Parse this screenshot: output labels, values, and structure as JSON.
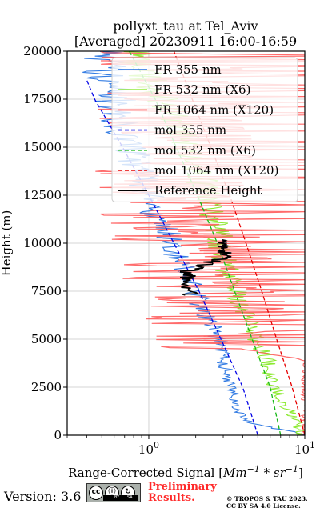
{
  "figure": {
    "title_line1": "pollyxt_tau at Tel_Aviv",
    "title_line2": "[Averaged] 20230911 16:00-16:59",
    "ylabel": "Height (m)",
    "xlabel_prefix": "Range-Corrected Signal ",
    "xlabel_unit_open": "[",
    "xlabel_unit_mm": "Mm",
    "xlabel_unit_mid": " * sr",
    "xlabel_exp": "−1",
    "xlabel_unit_close": "]"
  },
  "footer": {
    "version": "Version: 3.6",
    "license_badge": {
      "cc": "cc",
      "by": "BY",
      "sa": "SA"
    },
    "preliminary_line1": "Preliminary",
    "preliminary_line2": "Results.",
    "copyright_line1": "© TROPOS & TAU 2023.",
    "copyright_line2": "CC BY SA 4.0 License."
  },
  "colors": {
    "fr355": "#1f6fe0",
    "fr532": "#80e81a",
    "fr1064": "#ff5b5b",
    "mol355": "#0000e6",
    "mol532": "#14b814",
    "mol1064": "#e60000",
    "reference": "#000000",
    "grid": "#c8c8c8"
  },
  "chart_data": {
    "type": "line",
    "xscale": "log",
    "xlim": [
      0.3,
      10
    ],
    "ylim": [
      0,
      20000
    ],
    "grid": true,
    "legend_position": "upper-right",
    "yticks": [
      0,
      2500,
      5000,
      7500,
      10000,
      12500,
      15000,
      17500,
      20000
    ],
    "xticks": [
      {
        "value": 1,
        "label": "10",
        "exp": "0"
      },
      {
        "value": 10,
        "label": "10",
        "exp": "1"
      }
    ],
    "series": [
      {
        "name": "FR 355 nm",
        "kind": "noisy",
        "color_key": "fr355",
        "height": [
          0,
          250,
          600,
          1000,
          1500,
          2000,
          2700,
          3500,
          4500,
          5500,
          6500,
          7500,
          8500,
          9500,
          10500,
          11500,
          12500,
          13500,
          14500,
          15500,
          16500,
          17500,
          18500,
          19500,
          20000
        ],
        "value": [
          10.0,
          7.5,
          4.5,
          4.0,
          3.5,
          3.5,
          3.3,
          3.1,
          3.0,
          2.6,
          2.2,
          2.0,
          1.7,
          1.5,
          1.3,
          1.1,
          1.0,
          0.9,
          0.8,
          0.7,
          0.65,
          0.6,
          0.55,
          0.5,
          0.5
        ]
      },
      {
        "name": "FR 532 nm (X6)",
        "kind": "noisy",
        "color_key": "fr532",
        "height": [
          0,
          500,
          1000,
          1500,
          2000,
          2700,
          3500,
          3900,
          4500,
          5500,
          6500,
          7500,
          8500,
          9500,
          10500,
          11500,
          12500,
          13500,
          14500,
          15500,
          16500,
          17500,
          18500,
          19500,
          20000
        ],
        "value": [
          9.5,
          9.0,
          8.5,
          7.5,
          7.0,
          6.3,
          5.9,
          5.8,
          5.2,
          4.6,
          4.0,
          3.6,
          3.2,
          3.0,
          2.8,
          2.6,
          2.4,
          2.1,
          1.9,
          1.6,
          1.4,
          1.2,
          1.0,
          0.8,
          0.75
        ]
      },
      {
        "name": "FR 1064 nm (X120)",
        "kind": "noisy",
        "color_key": "fr1064",
        "height": [
          0,
          1000,
          2000,
          2700,
          3500,
          3900,
          4500,
          5500,
          6500,
          7500,
          8500,
          9500,
          10500,
          11500,
          12500,
          13500,
          14500,
          15500,
          16500,
          17500,
          18500,
          19500,
          20000
        ],
        "value": [
          10.0,
          10.0,
          10.0,
          10.0,
          10.0,
          10.0,
          4.0,
          3.0,
          2.5,
          2.2,
          2.0,
          1.8,
          1.7,
          1.6,
          1.5,
          1.5,
          1.5,
          1.5,
          1.5,
          1.5,
          1.5,
          1.5,
          1.5
        ]
      },
      {
        "name": "mol 355 nm",
        "kind": "dashed",
        "color_key": "mol355",
        "height": [
          0,
          2500,
          5000,
          7500,
          10000,
          12500,
          15000,
          17500,
          18500
        ],
        "value": [
          5.0,
          4.0,
          2.9,
          2.1,
          1.45,
          1.0,
          0.68,
          0.45,
          0.4
        ]
      },
      {
        "name": "mol 532 nm (X6)",
        "kind": "dashed",
        "color_key": "mol532",
        "height": [
          0,
          2500,
          5000,
          7500,
          10000,
          12500,
          15000,
          17500,
          20000
        ],
        "value": [
          7.0,
          6.0,
          4.6,
          3.55,
          2.75,
          2.05,
          1.5,
          1.1,
          0.75
        ]
      },
      {
        "name": "mol 1064 nm (X120)",
        "kind": "dashed",
        "color_key": "mol1064",
        "height": [
          0,
          2500,
          5000,
          7500,
          10000,
          12500,
          15000,
          17500,
          20000
        ],
        "value": [
          10.0,
          8.3,
          6.6,
          5.3,
          4.2,
          3.3,
          2.5,
          1.9,
          1.45
        ]
      },
      {
        "name": "Reference Height",
        "kind": "reference",
        "color_key": "reference",
        "height": [
          7300,
          8000,
          8500,
          9300,
          10000,
          10200
        ],
        "value": [
          1.85,
          1.8,
          1.75,
          3.0,
          3.1,
          3.0
        ]
      }
    ]
  }
}
